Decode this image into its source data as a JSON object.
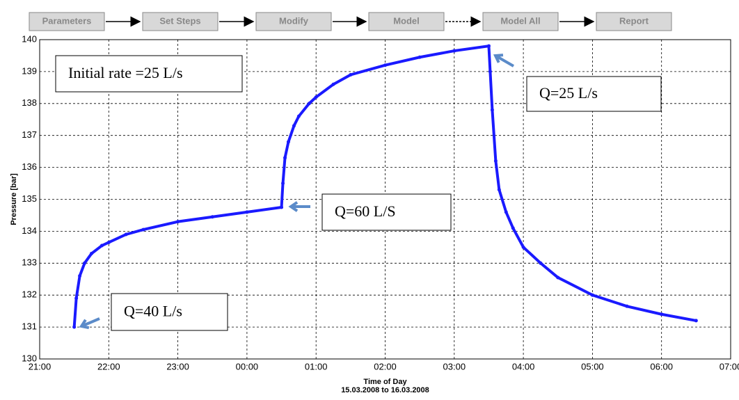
{
  "toolbar": {
    "buttons": [
      "Parameters",
      "Set Steps",
      "Modify",
      "Model",
      "Model All",
      "Report"
    ]
  },
  "chart_data": {
    "type": "line",
    "ylabel": "Pressure [bar]",
    "xlabel": "Time of Day",
    "subtitle": "15.03.2008 to 16.03.2008",
    "annotations": [
      "Initial rate =25 L/s",
      "Q=25 L/s",
      "Q=60 L/S",
      "Q=40 L/s"
    ],
    "xlim": [
      21,
      31
    ],
    "ylim": [
      130,
      140
    ],
    "grid": true,
    "xticks": [
      {
        "value": 21,
        "label": "21:00"
      },
      {
        "value": 22,
        "label": "22:00"
      },
      {
        "value": 23,
        "label": "23:00"
      },
      {
        "value": 24,
        "label": "00:00"
      },
      {
        "value": 25,
        "label": "01:00"
      },
      {
        "value": 26,
        "label": "02:00"
      },
      {
        "value": 27,
        "label": "03:00"
      },
      {
        "value": 28,
        "label": "04:00"
      },
      {
        "value": 29,
        "label": "05:00"
      },
      {
        "value": 30,
        "label": "06:00"
      },
      {
        "value": 31,
        "label": "07:00"
      }
    ],
    "yticks": [
      130,
      131,
      132,
      133,
      134,
      135,
      136,
      137,
      138,
      139,
      140
    ],
    "series": [
      {
        "color": "#1a1aff",
        "x": [
          21.5,
          21.53,
          21.58,
          21.65,
          21.75,
          21.9,
          22.0,
          22.25,
          22.5,
          23.0,
          23.5,
          24.0,
          24.5,
          24.52,
          24.55,
          24.6,
          24.68,
          24.75,
          24.9,
          25.0,
          25.25,
          25.5,
          26.0,
          26.5,
          27.0,
          27.5,
          27.52,
          27.55,
          27.6,
          27.65,
          27.75,
          27.85,
          28.0,
          28.25,
          28.5,
          29.0,
          29.5,
          30.0,
          30.5
        ],
        "values": [
          131.0,
          131.9,
          132.6,
          133.0,
          133.3,
          133.55,
          133.65,
          133.9,
          134.05,
          134.3,
          134.45,
          134.6,
          134.75,
          135.5,
          136.3,
          136.8,
          137.3,
          137.6,
          138.0,
          138.2,
          138.6,
          138.9,
          139.2,
          139.45,
          139.65,
          139.8,
          139.0,
          137.8,
          136.2,
          135.3,
          134.6,
          134.1,
          133.5,
          133.0,
          132.55,
          132.0,
          131.65,
          131.4,
          131.2
        ]
      }
    ]
  }
}
